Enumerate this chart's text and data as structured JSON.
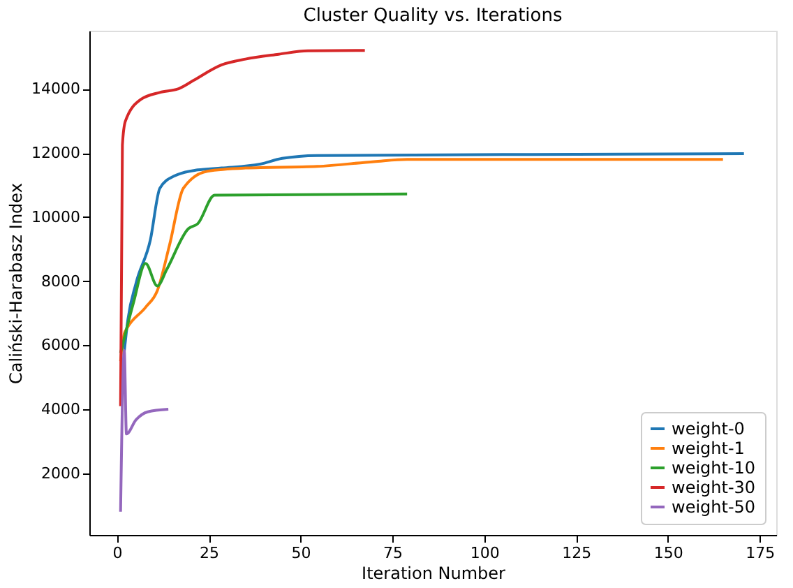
{
  "chart_data": {
    "type": "line",
    "title": "Cluster Quality vs. Iterations",
    "xlabel": "Iteration Number",
    "ylabel": "Caliński-Harabasz Index",
    "xlim": [
      -7.5,
      179.5
    ],
    "ylim": [
      77,
      15815
    ],
    "xticks": [
      0,
      25,
      50,
      75,
      100,
      125,
      150,
      175
    ],
    "yticks": [
      2000,
      4000,
      6000,
      8000,
      10000,
      12000,
      14000
    ],
    "grid": false,
    "legend": "bottom right",
    "marker": "none",
    "line_style": "solid",
    "series": [
      {
        "name": "weight-0",
        "color": "#1f77b4",
        "x": [
          2,
          3,
          5.2,
          9.1,
          11.7,
          15.6,
          22,
          28.5,
          39,
          45,
          54.5,
          105,
          170.7
        ],
        "values": [
          5800,
          6800,
          7930,
          9280,
          10900,
          11280,
          11470,
          11530,
          11650,
          11830,
          11920,
          11950,
          11980
        ]
      },
      {
        "name": "weight-1",
        "color": "#ff7f0e",
        "x": [
          1,
          2,
          2.6,
          7.8,
          11,
          14.3,
          18.1,
          24.6,
          35,
          54.5,
          70,
          79,
          165
        ],
        "values": [
          5500,
          6360,
          6500,
          7180,
          7700,
          9110,
          10900,
          11430,
          11530,
          11580,
          11730,
          11800,
          11800
        ]
      },
      {
        "name": "weight-10",
        "color": "#2ca02c",
        "x": [
          1,
          4.5,
          7.8,
          11,
          13.6,
          19.5,
          22,
          26.6,
          79
        ],
        "values": [
          5760,
          7320,
          8550,
          7850,
          8370,
          9640,
          9790,
          10680,
          10720
        ]
      },
      {
        "name": "weight-30",
        "color": "#d62728",
        "x": [
          1,
          1.5,
          2.3,
          6.5,
          11.7,
          16.9,
          20.8,
          28.5,
          35,
          44,
          52,
          67.5
        ],
        "values": [
          4100,
          12250,
          12990,
          13670,
          13890,
          14010,
          14260,
          14750,
          14930,
          15080,
          15190,
          15200
        ]
      },
      {
        "name": "weight-50",
        "color": "#9467bd",
        "x": [
          1,
          2,
          2.6,
          5.2,
          8.4,
          14
        ],
        "values": [
          800,
          5830,
          3230,
          3670,
          3920,
          4000
        ]
      }
    ]
  }
}
